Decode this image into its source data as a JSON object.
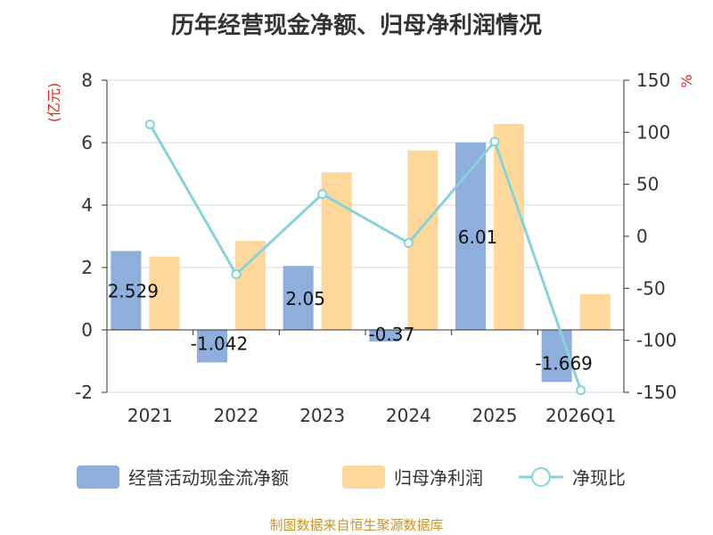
{
  "title": "历年经营现金净额、归母净利润情况",
  "footer": "制图数据来自恒生聚源数据库",
  "colors": {
    "operating_cash": "#8eaedc",
    "net_profit": "#fdd89a",
    "ratio_line": "#86d3d9",
    "grid": "#d9d9d9",
    "axis": "#333333",
    "unit": "#e0251b",
    "footer": "#c8952a"
  },
  "chart_data": {
    "type": "bar",
    "categories": [
      "2021",
      "2022",
      "2023",
      "2024",
      "2025",
      "2026Q1"
    ],
    "left_axis": {
      "unit_label": "(亿元)",
      "ylim": [
        -2,
        8
      ],
      "ticks": [
        -2,
        0,
        2,
        4,
        6,
        8
      ]
    },
    "right_axis": {
      "unit_label": "%",
      "ylim": [
        -150,
        150
      ],
      "ticks": [
        -150,
        -100,
        -50,
        0,
        50,
        100,
        150
      ]
    },
    "series": [
      {
        "name": "经营活动现金流净额",
        "type": "bar",
        "axis": "left",
        "values": [
          2.529,
          -1.042,
          2.05,
          -0.37,
          6.01,
          -1.669
        ],
        "data_labels": [
          "2.529",
          "-1.042",
          "2.05",
          "-0.37",
          "6.01",
          "-1.669"
        ]
      },
      {
        "name": "归母净利润",
        "type": "bar",
        "axis": "left",
        "values": [
          2.35,
          2.85,
          5.05,
          5.75,
          6.6,
          1.15
        ]
      },
      {
        "name": "净现比",
        "type": "line",
        "axis": "right",
        "values": [
          107.6,
          -36.5,
          40.6,
          -6.4,
          91.0,
          -148.0
        ]
      }
    ],
    "grid": true,
    "legend_position": "bottom"
  }
}
